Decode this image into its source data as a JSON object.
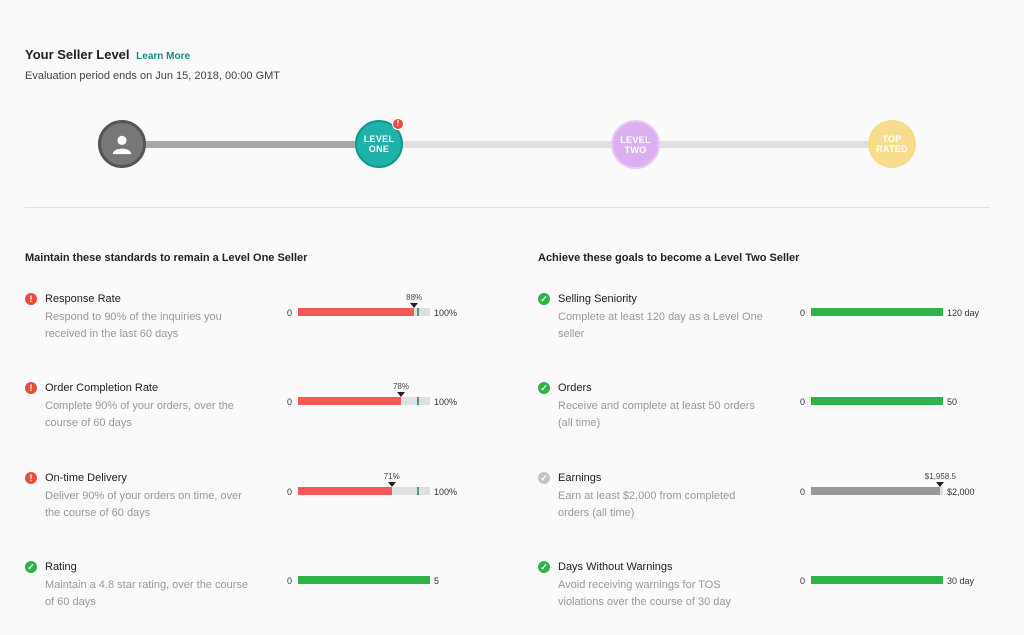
{
  "header": {
    "title": "Your Seller Level",
    "learn_more": "Learn More",
    "evaluation": "Evaluation period ends on Jun 15, 2018, 00:00 GMT"
  },
  "levels": {
    "current_alert": "!",
    "one": "LEVEL ONE",
    "two": "LEVEL TWO",
    "top": "TOP RATED"
  },
  "left": {
    "title": "Maintain these standards to remain a Level One Seller",
    "items": [
      {
        "name": "Response Rate",
        "desc": "Respond to 90% of the inquiries you received in the last 60 days",
        "status": "warn",
        "min": "0",
        "max": "100%",
        "value_label": "88%",
        "progress": 0.88
      },
      {
        "name": "Order Completion Rate",
        "desc": "Complete 90% of your orders, over the course of 60 days",
        "status": "warn",
        "min": "0",
        "max": "100%",
        "value_label": "78%",
        "progress": 0.78
      },
      {
        "name": "On-time Delivery",
        "desc": "Deliver 90% of your orders on time, over the course of 60 days",
        "status": "warn",
        "min": "0",
        "max": "100%",
        "value_label": "71%",
        "progress": 0.71
      },
      {
        "name": "Rating",
        "desc": "Maintain a 4.8 star rating, over the course of 60 days",
        "status": "ok",
        "min": "0",
        "max": "5",
        "value_label": "",
        "progress": 1.0
      }
    ]
  },
  "right": {
    "title": "Achieve these goals to become a Level Two Seller",
    "items": [
      {
        "name": "Selling Seniority",
        "desc": "Complete at least 120 day as a Level One seller",
        "status": "ok",
        "min": "0",
        "max": "120 day",
        "value_label": "",
        "progress": 1.0
      },
      {
        "name": "Orders",
        "desc": "Receive and complete at least 50 orders (all time)",
        "status": "ok",
        "min": "0",
        "max": "50",
        "value_label": "",
        "progress": 1.0
      },
      {
        "name": "Earnings",
        "desc": "Earn at least $2,000 from completed orders (all time)",
        "status": "gray",
        "min": "0",
        "max": "$2,000",
        "value_label": "$1,958.5",
        "progress": 0.98
      },
      {
        "name": "Days Without Warnings",
        "desc": "Avoid receiving warnings for TOS violations over the course of 30 day",
        "status": "ok",
        "min": "0",
        "max": "30 day",
        "value_label": "",
        "progress": 1.0
      }
    ]
  },
  "colors": {
    "warn": "#e74c3c",
    "ok": "#2db34a",
    "teal": "#1db3a8",
    "purple": "#dcb0f0",
    "gold": "#f7dc8d"
  }
}
